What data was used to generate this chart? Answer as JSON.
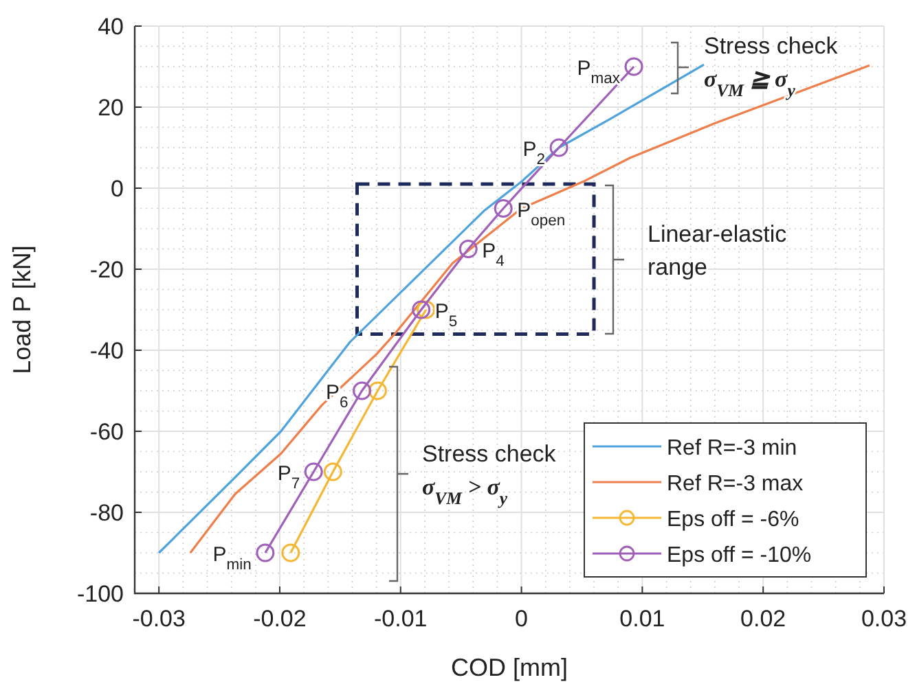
{
  "chart_data": {
    "type": "line",
    "xlabel": "COD [mm]",
    "ylabel": "Load P [kN]",
    "xlim": [
      -0.032,
      0.03
    ],
    "ylim": [
      -100,
      40
    ],
    "xticks": [
      -0.03,
      -0.02,
      -0.01,
      0,
      0.01,
      0.02,
      0.03
    ],
    "yticks": [
      -100,
      -80,
      -60,
      -40,
      -20,
      0,
      20,
      40
    ],
    "grid": true,
    "legend": "bottom right",
    "line_style": "solid",
    "series": [
      {
        "name": "Ref R=-3 min",
        "color": "#4fa3dd",
        "marker": "none",
        "x": [
          -0.03,
          -0.0235,
          -0.0199,
          -0.0142,
          -0.0031,
          0,
          0.0031,
          0.0073,
          0.0151
        ],
        "values": [
          -90,
          -70.8,
          -60,
          -38,
          -5.6,
          1.6,
          10,
          17,
          30.5
        ]
      },
      {
        "name": "Ref R=-3 max",
        "color": "#ee7f4a",
        "marker": "none",
        "x": [
          -0.0274,
          -0.0237,
          -0.0199,
          -0.0165,
          -0.012,
          -0.0105,
          -0.0057,
          0,
          0.0051,
          0.009,
          0.016,
          0.0288
        ],
        "values": [
          -90,
          -75.5,
          -65.5,
          -53.5,
          -41,
          -36,
          -18.5,
          -5,
          1.6,
          7.5,
          16,
          30.3
        ]
      },
      {
        "name": "Eps off = -6%",
        "color": "#f5b733",
        "marker": "circle",
        "x": [
          -0.0191,
          -0.0156,
          -0.0119,
          -0.0079
        ],
        "values": [
          -90,
          -70,
          -50,
          -30
        ]
      },
      {
        "name": "Eps off = -10%",
        "color": "#a05fb8",
        "marker": "circle",
        "x": [
          -0.0212,
          -0.0172,
          -0.0132,
          -0.0083,
          -0.0044,
          -0.0015,
          0.0031,
          0.0093
        ],
        "values": [
          -90,
          -70,
          -50,
          -30,
          -15,
          -5,
          10,
          30
        ]
      }
    ],
    "annotations": [
      {
        "text": "P$_{max}$",
        "x": 0.0093,
        "y": 30
      },
      {
        "text": "P$_{2}$",
        "x": 0.0031,
        "y": 10
      },
      {
        "text": "P$_{open}$",
        "x": -0.0015,
        "y": -5
      },
      {
        "text": "P$_{4}$",
        "x": -0.0044,
        "y": -15
      },
      {
        "text": "P$_{5}$",
        "x": -0.0083,
        "y": -30
      },
      {
        "text": "P$_{6}$",
        "x": -0.0132,
        "y": -50
      },
      {
        "text": "P$_{7}$",
        "x": -0.0172,
        "y": -70
      },
      {
        "text": "P$_{min}$",
        "x": -0.0212,
        "y": -90
      },
      "Stress check\nσ$_{VM}$ ≧ σ$_{y}$",
      "Linear-elastic\nrange",
      "Stress check\nσ$_{VM}$ > σ$_{y}$"
    ]
  }
}
